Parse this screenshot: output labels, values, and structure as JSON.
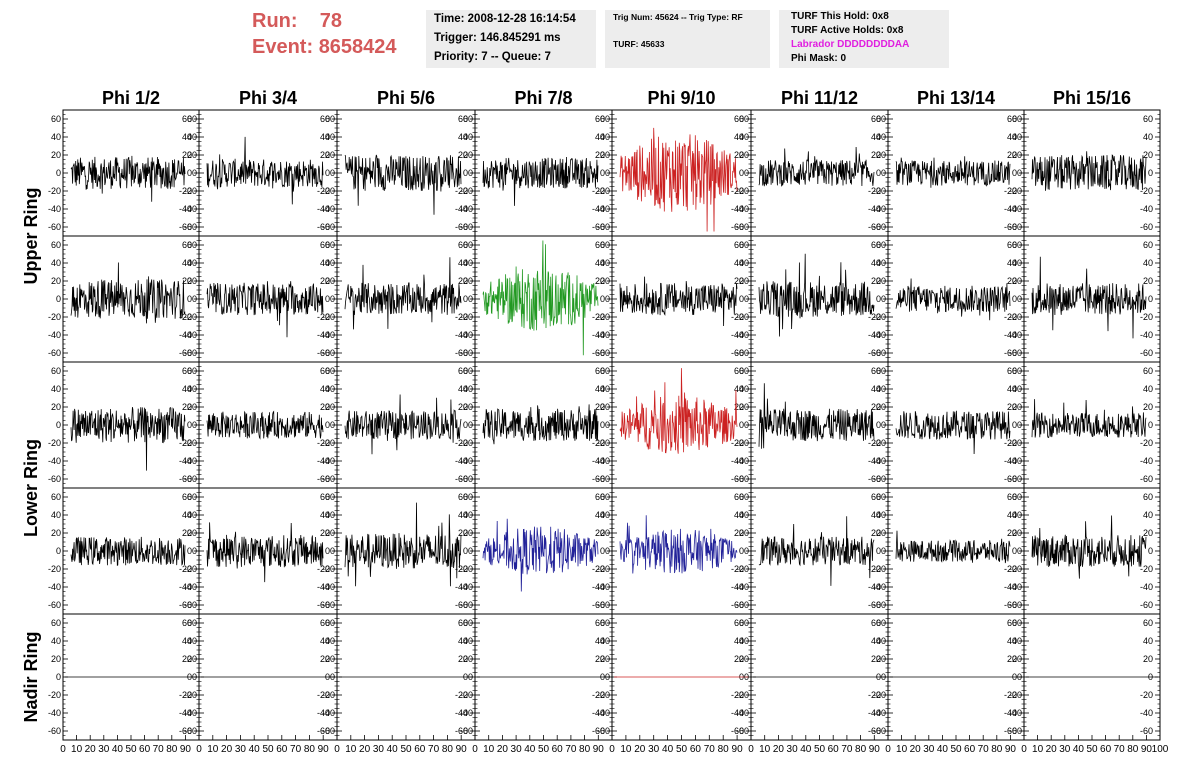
{
  "header": {
    "run_label": "Run:",
    "run_value": "78",
    "event_label": "Event:",
    "event_value": "8658424",
    "run_color": "#d45a5a"
  },
  "info_time": {
    "time": "Time: 2008-12-28 16:14:54",
    "trigger": "Trigger: 146.845291 ms",
    "priority": "Priority: 7 -- Queue: 7"
  },
  "info_trig": {
    "trig": "Trig Num: 45624 -- Trig Type: RF",
    "turf": "TURF: 45633"
  },
  "info_turf": {
    "this_hold": "TURF This Hold: 0x8",
    "active_holds": "TURF Active Holds: 0x8",
    "labrador": "Labrador DDDDDDDDAA",
    "labrador_color": "#e020e0",
    "phi_mask": "Phi Mask: 0"
  },
  "chart_data": {
    "type": "line",
    "columns": [
      "Phi 1/2",
      "Phi 3/4",
      "Phi 5/6",
      "Phi 7/8",
      "Phi 9/10",
      "Phi 11/12",
      "Phi 13/14",
      "Phi 15/16"
    ],
    "rows": [
      "Upper Ring",
      "Lower Ring",
      "Nadir Ring"
    ],
    "ylim": [
      -70,
      70
    ],
    "yticks": [
      60,
      40,
      20,
      0,
      -20,
      -40,
      -60
    ],
    "xlim": [
      0,
      100
    ],
    "xticks": [
      "0",
      "10",
      "20",
      "30",
      "40",
      "50",
      "60",
      "70",
      "80",
      "90",
      "100"
    ],
    "panel_colors": [
      [
        "#000000",
        "#000000",
        "#000000",
        "#000000",
        "#cc2222",
        "#000000",
        "#000000",
        "#000000"
      ],
      [
        "#000000",
        "#000000",
        "#000000",
        "#229922",
        "#000000",
        "#000000",
        "#000000",
        "#000000"
      ],
      [
        "#000000",
        "#000000",
        "#000000",
        "#000000",
        "#cc2222",
        "#000000",
        "#000000",
        "#000000"
      ],
      [
        "#000000",
        "#000000",
        "#000000",
        "#222299",
        "#222299",
        "#000000",
        "#000000",
        "#000000"
      ],
      [
        "#000000",
        "#000000",
        "#000000",
        "#000000",
        "#cc2222",
        "#000000",
        "#000000",
        "#000000"
      ]
    ],
    "panel_amplitude": [
      [
        18,
        16,
        20,
        17,
        32,
        15,
        14,
        20
      ],
      [
        22,
        18,
        18,
        26,
        18,
        20,
        15,
        18
      ],
      [
        20,
        15,
        16,
        18,
        24,
        18,
        16,
        14
      ],
      [
        16,
        18,
        20,
        20,
        18,
        16,
        12,
        18
      ],
      [
        0,
        0,
        0,
        0,
        0,
        0,
        0,
        0
      ]
    ]
  }
}
